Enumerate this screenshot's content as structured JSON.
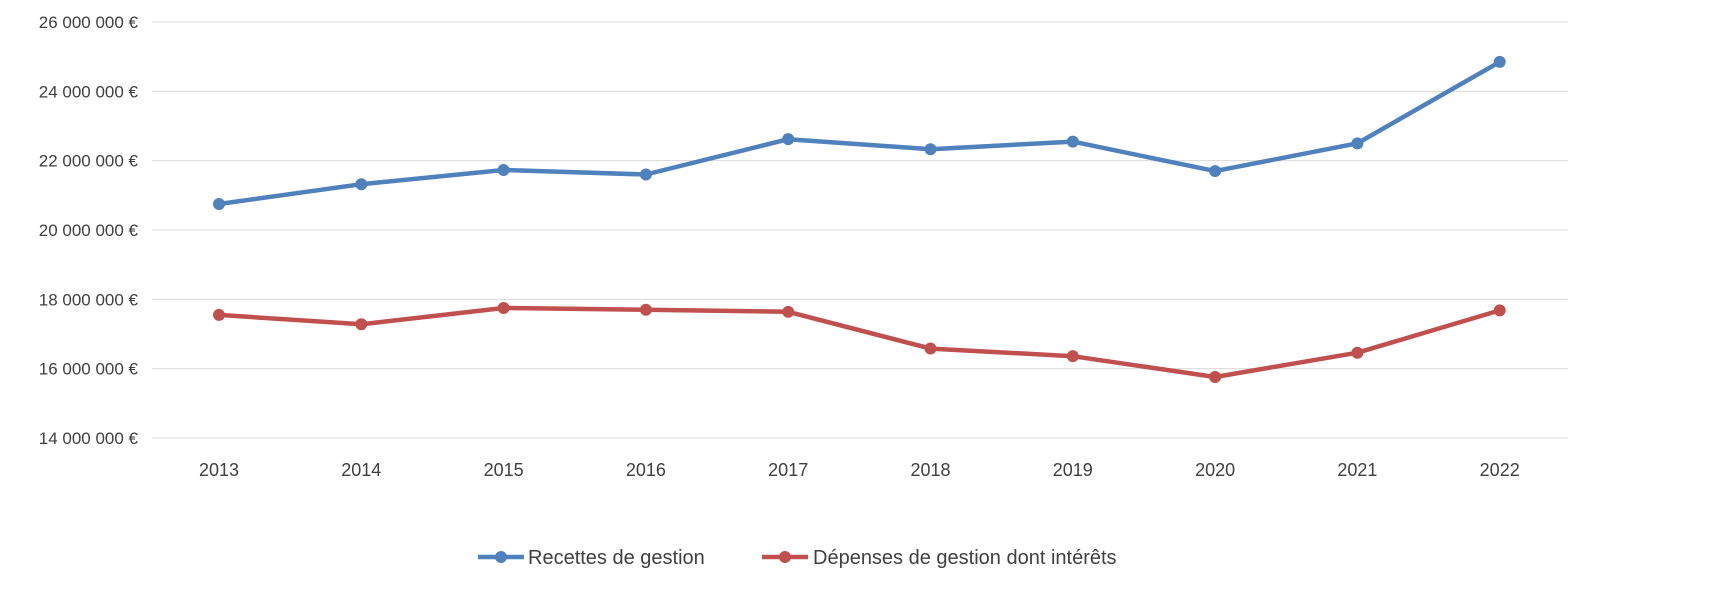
{
  "chart_data": {
    "type": "line",
    "categories": [
      "2013",
      "2014",
      "2015",
      "2016",
      "2017",
      "2018",
      "2019",
      "2020",
      "2021",
      "2022"
    ],
    "series": [
      {
        "name": "Recettes de gestion",
        "color": "#4f81bd",
        "values": [
          20750000,
          21320000,
          21730000,
          21600000,
          22620000,
          22330000,
          22550000,
          21700000,
          22500000,
          24850000
        ]
      },
      {
        "name": "Dépenses de gestion dont intérêts",
        "color": "#c0504d",
        "values": [
          17550000,
          17280000,
          17750000,
          17700000,
          17640000,
          16580000,
          16360000,
          15760000,
          16460000,
          17680000
        ]
      }
    ],
    "ylim": [
      14000000,
      26000000
    ],
    "yticks": [
      14000000,
      16000000,
      18000000,
      20000000,
      22000000,
      24000000,
      26000000
    ],
    "ytick_labels": [
      "14 000 000 €",
      "16 000 000 €",
      "18 000 000 €",
      "20 000 000 €",
      "22 000 000 €",
      "24 000 000 €",
      "26 000 000 €"
    ],
    "grid": true,
    "legend_position": "bottom"
  }
}
